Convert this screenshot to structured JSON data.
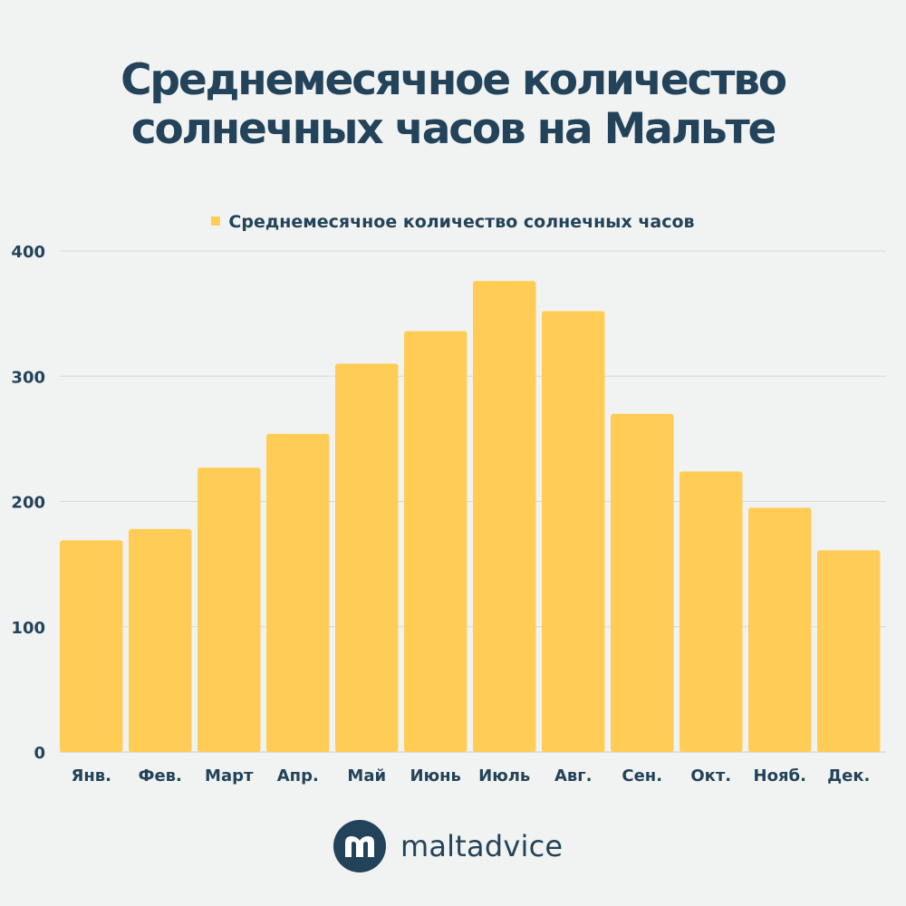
{
  "chart_data": {
    "type": "bar",
    "title_lines": [
      "Среднемесячное количество",
      "солнечных часов на Мальте"
    ],
    "legend": "Среднемесячное количество солнечных часов",
    "categories": [
      "Янв.",
      "Фев.",
      "Март",
      "Апр.",
      "Май",
      "Июнь",
      "Июль",
      "Авг.",
      "Сен.",
      "Окт.",
      "Нояб.",
      "Дек."
    ],
    "series": [
      {
        "name": "Среднемесячное количество солнечных часов",
        "values": [
          169,
          178,
          227,
          254,
          310,
          336,
          376,
          352,
          270,
          224,
          195,
          161
        ]
      }
    ],
    "yticks": [
      0,
      100,
      200,
      300,
      400
    ],
    "ylim": [
      0,
      400
    ],
    "grid": true,
    "colors": {
      "bar": "#ffcd55",
      "grid": "#d6d9d8",
      "text": "#23435a"
    }
  },
  "brand": {
    "name": "maltadvice",
    "logo_letter": "m"
  }
}
